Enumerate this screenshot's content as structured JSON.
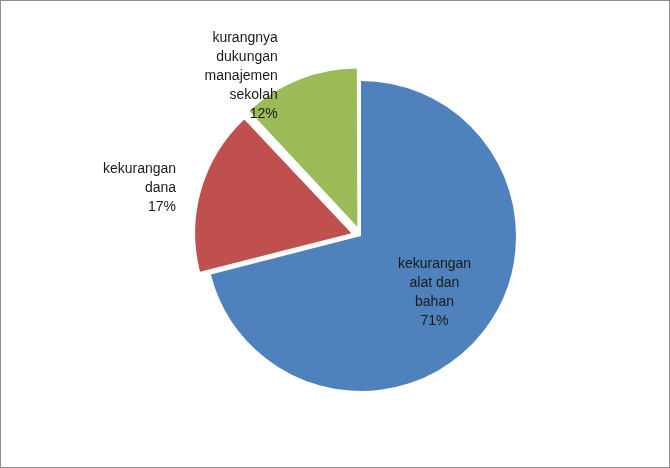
{
  "chart_data": {
    "type": "pie",
    "categories": [
      "kekurangan alat dan bahan",
      "kekurangan dana",
      "kurangnya dukungan manajemen sekolah"
    ],
    "values": [
      71,
      17,
      12
    ],
    "value_labels": [
      "71%",
      "17%",
      "12%"
    ],
    "colors": [
      "#4f81bd",
      "#c0504d",
      "#9bbb59"
    ],
    "data_labels": true
  }
}
